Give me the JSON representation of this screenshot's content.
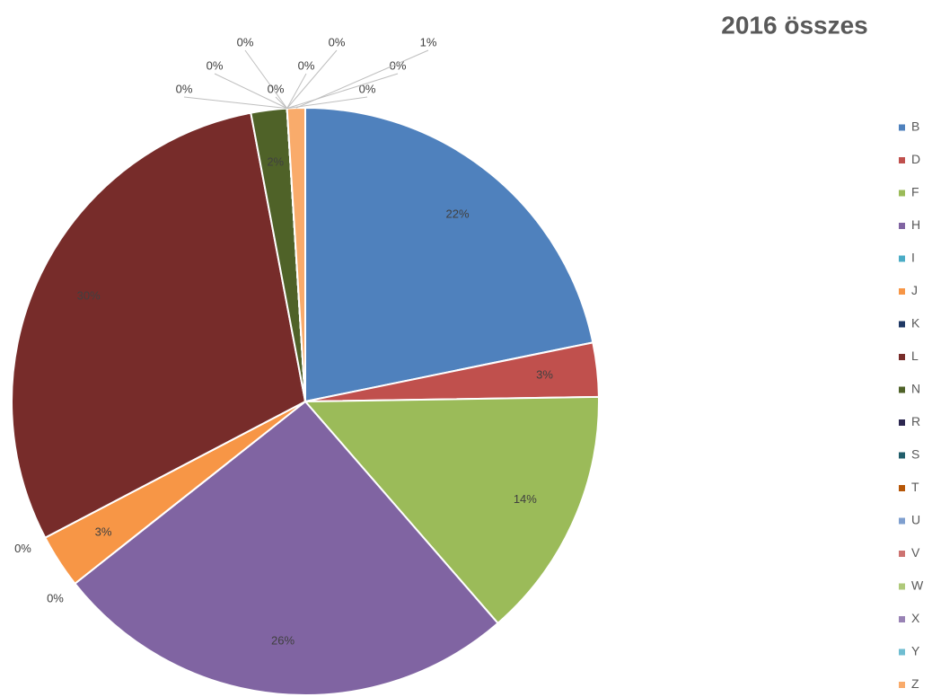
{
  "chart_data": {
    "type": "pie",
    "title": "2016 összes",
    "categories": [
      "B",
      "D",
      "F",
      "H",
      "I",
      "J",
      "K",
      "L",
      "N",
      "R",
      "S",
      "T",
      "U",
      "V",
      "W",
      "X",
      "Y",
      "Z"
    ],
    "values": [
      22,
      3,
      14,
      26,
      0,
      3,
      0,
      30,
      2,
      0,
      0,
      0,
      0,
      0,
      0,
      0,
      0,
      1
    ],
    "value_labels": [
      "22%",
      "3%",
      "14%",
      "26%",
      "0%",
      "3%",
      "0%",
      "30%",
      "2%",
      "0%",
      "0%",
      "0%",
      "0%",
      "0%",
      "0%",
      "0%",
      "0%",
      "1%"
    ],
    "colors": [
      "#4f81bd",
      "#c0504d",
      "#9bbb59",
      "#8064a2",
      "#4bacc6",
      "#f79646",
      "#1f3864",
      "#772c2a",
      "#4f6228",
      "#2c2750",
      "#215e6b",
      "#b65708",
      "#7f9fcf",
      "#cd7371",
      "#afc97a",
      "#9983b5",
      "#6fbdd1",
      "#f9ab6b"
    ],
    "legend": "right"
  }
}
